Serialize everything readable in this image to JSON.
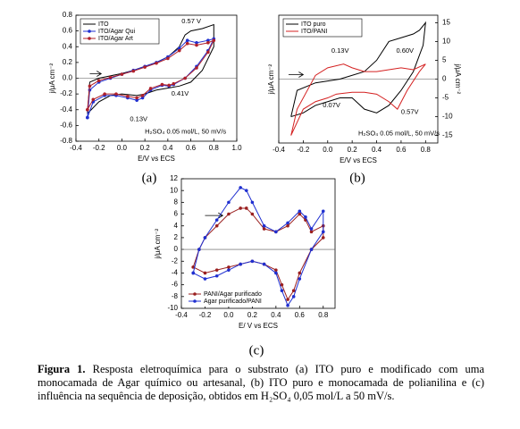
{
  "chart_data": [
    {
      "type": "line",
      "panel_label": "(a)",
      "xlabel": "E/V vs ECS",
      "ylabel": "j/μA cm⁻²",
      "xlim": [
        -0.4,
        1.0
      ],
      "xticks": [
        -0.4,
        -0.2,
        {
          "value": 0,
          "label": "0.0"
        },
        0.2,
        0.4,
        0.6,
        0.8,
        {
          "value": 1,
          "label": "1.0"
        }
      ],
      "ylim": [
        -0.8,
        0.8
      ],
      "yticks": [
        -0.8,
        -0.6,
        -0.4,
        -0.2,
        {
          "value": 0,
          "label": "0.0"
        },
        0.2,
        0.4,
        0.6,
        0.8
      ],
      "legend": "upper left",
      "y_axis_side": "left",
      "annotations": [
        "0.57 V",
        "0.41V",
        "0.13V",
        "H₂SO₄ 0.05 mol/L, 50 mV/s"
      ],
      "series": [
        {
          "name": "ITO",
          "color": "#000000",
          "marker": false,
          "x": [
            -0.3,
            -0.28,
            -0.2,
            -0.1,
            0.0,
            0.1,
            0.2,
            0.3,
            0.4,
            0.5,
            0.55,
            0.6,
            0.7,
            0.8,
            0.8,
            0.7,
            0.6,
            0.5,
            0.42,
            0.3,
            0.2,
            0.13,
            0.0,
            -0.1,
            -0.2,
            -0.3
          ],
          "values": [
            -0.45,
            -0.05,
            0.0,
            0.03,
            0.06,
            0.1,
            0.15,
            0.2,
            0.27,
            0.4,
            0.55,
            0.6,
            0.63,
            0.68,
            0.4,
            0.1,
            -0.05,
            -0.1,
            -0.12,
            -0.15,
            -0.2,
            -0.22,
            -0.2,
            -0.22,
            -0.3,
            -0.45
          ]
        },
        {
          "name": "ITO/Agar Qui",
          "color": "#1f2fd0",
          "marker": true,
          "x": [
            -0.3,
            -0.28,
            -0.2,
            -0.1,
            0.0,
            0.1,
            0.2,
            0.3,
            0.4,
            0.5,
            0.57,
            0.65,
            0.75,
            0.8,
            0.75,
            0.65,
            0.55,
            0.45,
            0.41,
            0.35,
            0.25,
            0.18,
            0.13,
            0.05,
            -0.05,
            -0.15,
            -0.25,
            -0.3
          ],
          "values": [
            -0.5,
            -0.15,
            -0.05,
            0.0,
            0.05,
            0.1,
            0.15,
            0.2,
            0.27,
            0.38,
            0.48,
            0.45,
            0.48,
            0.5,
            0.35,
            0.15,
            0.0,
            -0.08,
            -0.1,
            -0.09,
            -0.15,
            -0.25,
            -0.28,
            -0.25,
            -0.22,
            -0.22,
            -0.3,
            -0.5
          ]
        },
        {
          "name": "ITO/Agar Art",
          "color": "#b0202a",
          "marker": true,
          "x": [
            -0.3,
            -0.28,
            -0.2,
            -0.1,
            0.0,
            0.1,
            0.2,
            0.3,
            0.4,
            0.5,
            0.57,
            0.65,
            0.75,
            0.8,
            0.75,
            0.65,
            0.55,
            0.45,
            0.41,
            0.35,
            0.25,
            0.18,
            0.13,
            0.05,
            -0.05,
            -0.15,
            -0.25,
            -0.3
          ],
          "values": [
            -0.4,
            -0.1,
            -0.03,
            0.01,
            0.05,
            0.09,
            0.14,
            0.19,
            0.25,
            0.35,
            0.44,
            0.42,
            0.45,
            0.48,
            0.33,
            0.13,
            0.0,
            -0.07,
            -0.09,
            -0.08,
            -0.13,
            -0.22,
            -0.25,
            -0.23,
            -0.2,
            -0.2,
            -0.27,
            -0.4
          ]
        }
      ]
    },
    {
      "type": "line",
      "panel_label": "(b)",
      "xlabel": "E/V vs ECS",
      "ylabel": "j/μA cm⁻²",
      "y2label": "j/μA cm⁻²",
      "xlim": [
        -0.4,
        0.9
      ],
      "xticks": [
        -0.4,
        -0.2,
        {
          "value": 0,
          "label": "0.0"
        },
        0.2,
        0.4,
        0.6,
        0.8
      ],
      "ylim": [
        -17,
        17
      ],
      "yticks": [
        -15,
        -10,
        -5,
        0,
        5,
        10,
        15
      ],
      "legend": "upper left",
      "y_axis_side": "right",
      "annotations": [
        "0.13V",
        "0.60V",
        "0.07V",
        "0.57V",
        "H₂SO₄ 0.05 mol/L, 50 mV/s"
      ],
      "series": [
        {
          "name": "ITO puro",
          "color": "#000000",
          "marker": false,
          "x": [
            -0.3,
            -0.25,
            -0.1,
            0.1,
            0.3,
            0.4,
            0.5,
            0.6,
            0.7,
            0.75,
            0.8,
            0.78,
            0.7,
            0.6,
            0.5,
            0.4,
            0.3,
            0.2,
            0.1,
            0.0,
            -0.1,
            -0.2,
            -0.3
          ],
          "values": [
            -10,
            -3,
            -1,
            0,
            2,
            5,
            10,
            11,
            12,
            13,
            15,
            9,
            2,
            -3,
            -7,
            -9,
            -8,
            -5,
            -5,
            -6,
            -7,
            -9,
            -10
          ]
        },
        {
          "name": "ITO/PANI",
          "color": "#d42020",
          "marker": false,
          "x": [
            -0.3,
            -0.25,
            -0.1,
            0.0,
            0.13,
            0.2,
            0.3,
            0.4,
            0.5,
            0.6,
            0.7,
            0.8,
            0.75,
            0.65,
            0.57,
            0.5,
            0.4,
            0.3,
            0.2,
            0.07,
            0.0,
            -0.1,
            -0.2,
            -0.3
          ],
          "values": [
            -15,
            -8,
            1,
            3,
            4,
            3,
            2,
            2,
            2.5,
            3,
            2.5,
            4,
            2,
            -3,
            -8,
            -6,
            -4,
            -3.5,
            -3.5,
            -4,
            -5,
            -6,
            -8,
            -15
          ]
        }
      ]
    },
    {
      "type": "line",
      "panel_label": "(c)",
      "xlabel": "E/ V vs ECS",
      "ylabel": "j/μA cm⁻²",
      "xlim": [
        -0.4,
        0.9
      ],
      "xticks": [
        -0.4,
        -0.2,
        {
          "value": 0,
          "label": "0.0"
        },
        0.2,
        0.4,
        0.6,
        0.8
      ],
      "ylim": [
        -10,
        12
      ],
      "yticks": [
        -10,
        -8,
        -6,
        -4,
        -2,
        0,
        2,
        4,
        6,
        8,
        10,
        12
      ],
      "legend": "lower left",
      "y_axis_side": "left",
      "annotations": [],
      "series": [
        {
          "name": "PANI/Agar purificado",
          "color": "#9a1f1f",
          "marker": true,
          "x": [
            -0.3,
            -0.25,
            -0.2,
            -0.1,
            0.0,
            0.1,
            0.15,
            0.2,
            0.3,
            0.4,
            0.5,
            0.6,
            0.65,
            0.7,
            0.8,
            0.8,
            0.7,
            0.6,
            0.55,
            0.5,
            0.45,
            0.4,
            0.3,
            0.2,
            0.1,
            0.0,
            -0.1,
            -0.2,
            -0.3
          ],
          "values": [
            -3,
            0,
            2,
            4,
            6,
            7,
            7,
            6,
            3.5,
            3,
            4,
            6,
            5,
            3,
            4,
            2,
            0,
            -4,
            -7,
            -8.5,
            -6,
            -3.5,
            -2.5,
            -2,
            -2.5,
            -3,
            -3.5,
            -4,
            -3
          ]
        },
        {
          "name": "Agar purificado/PANI",
          "color": "#1f2fd0",
          "marker": true,
          "x": [
            -0.3,
            -0.25,
            -0.2,
            -0.1,
            0.0,
            0.1,
            0.15,
            0.2,
            0.3,
            0.4,
            0.5,
            0.6,
            0.65,
            0.7,
            0.8,
            0.8,
            0.7,
            0.6,
            0.55,
            0.5,
            0.45,
            0.4,
            0.3,
            0.2,
            0.1,
            0.0,
            -0.1,
            -0.2,
            -0.3
          ],
          "values": [
            -4,
            0,
            2,
            5,
            8,
            10.5,
            10,
            8,
            4,
            3,
            4.5,
            6.5,
            5.5,
            3.5,
            6.5,
            3,
            0,
            -5,
            -8,
            -9.5,
            -7,
            -4,
            -2.5,
            -2,
            -2.5,
            -3.5,
            -4.5,
            -5,
            -4
          ]
        }
      ]
    }
  ],
  "caption": {
    "label": "Figura 1.",
    "text": "Resposta eletroquímica para o substrato (a) ITO puro e modificado com uma monocamada de Agar químico ou artesanal, (b) ITO puro e monocamada de polianilina e (c) influência na sequência de deposição, obtidos em H₂SO₄ 0,05 mol/L a 50 mV/s."
  }
}
